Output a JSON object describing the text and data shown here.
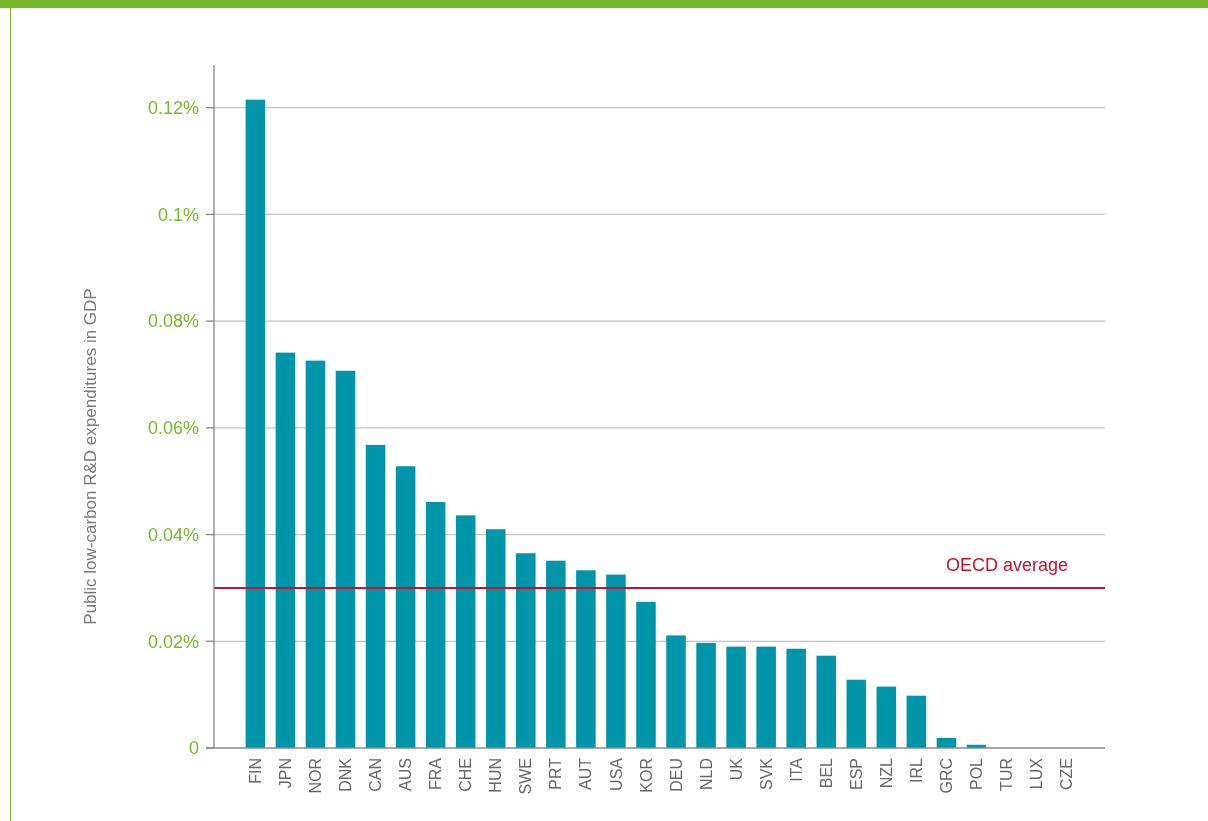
{
  "chart_data": {
    "type": "bar",
    "ylabel": "Public low-carbon R&D expenditures in GDP",
    "categories": [
      "FIN",
      "JPN",
      "NOR",
      "DNK",
      "CAN",
      "AUS",
      "FRA",
      "CHE",
      "HUN",
      "SWE",
      "PRT",
      "AUT",
      "USA",
      "KOR",
      "DEU",
      "NLD",
      "UK",
      "SVK",
      "ITA",
      "BEL",
      "ESP",
      "NZL",
      "IRL",
      "GRC",
      "POL",
      "TUR",
      "LUX",
      "CZE"
    ],
    "values": [
      0.1215,
      0.0741,
      0.0726,
      0.0707,
      0.0568,
      0.0528,
      0.0461,
      0.0436,
      0.041,
      0.0365,
      0.0351,
      0.0333,
      0.0325,
      0.0274,
      0.0211,
      0.0197,
      0.019,
      0.019,
      0.0186,
      0.0173,
      0.0128,
      0.0115,
      0.0098,
      0.0019,
      0.0006,
      0,
      0,
      0
    ],
    "color": "#0095a8",
    "ylim": [
      0,
      0.128
    ],
    "yticks": [
      0,
      {
        "value": 0.02,
        "label": "0.02%"
      },
      {
        "value": 0.04,
        "label": "0.04%"
      },
      {
        "value": 0.06,
        "label": "0.06%"
      },
      {
        "value": 0.08,
        "label": "0.08%"
      },
      {
        "value": 0.1,
        "label": "0.1%"
      },
      {
        "value": 0.12,
        "label": "0.12%"
      }
    ],
    "grid": "y",
    "ref_lines": [
      {
        "axis": "y",
        "value": 0.03,
        "label": "OECD average",
        "color": "#c8102e"
      }
    ]
  }
}
